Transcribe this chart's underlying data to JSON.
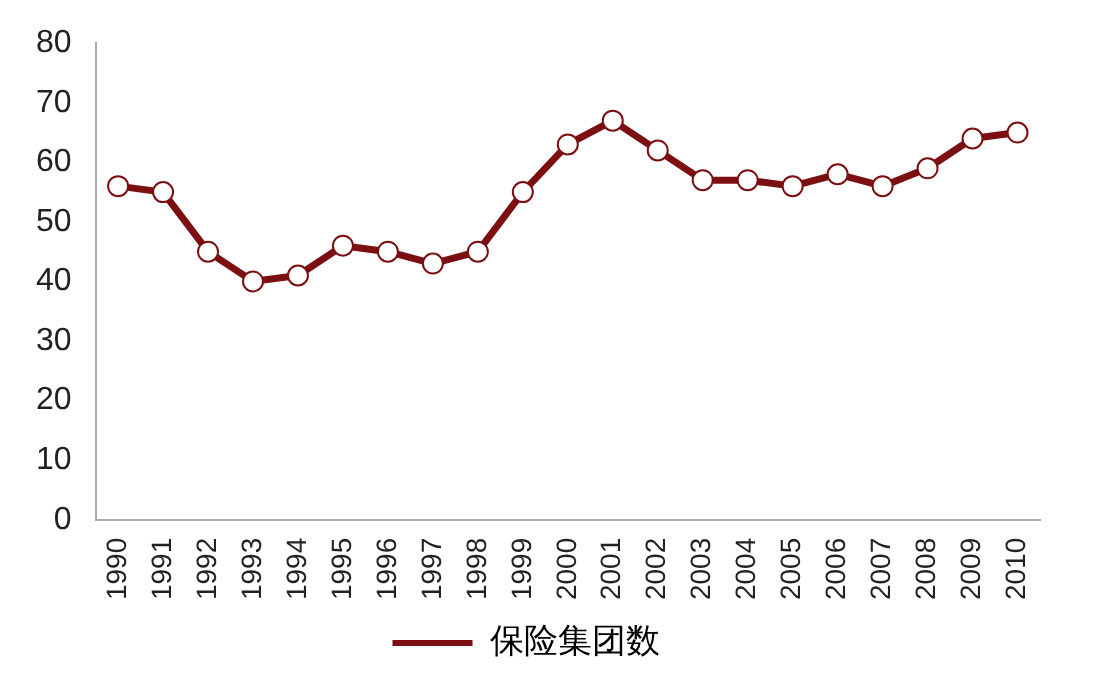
{
  "chart_data": {
    "type": "line",
    "categories": [
      "1990",
      "1991",
      "1992",
      "1993",
      "1994",
      "1995",
      "1996",
      "1997",
      "1998",
      "1999",
      "2000",
      "2001",
      "2002",
      "2003",
      "2004",
      "2005",
      "2006",
      "2007",
      "2008",
      "2009",
      "2010"
    ],
    "series": [
      {
        "name": "保险集团数",
        "color": "#7b0f12",
        "values": [
          56,
          55,
          45,
          40,
          41,
          46,
          45,
          43,
          45,
          55,
          63,
          67,
          62,
          57,
          57,
          56,
          58,
          56,
          59,
          64,
          65
        ]
      }
    ],
    "ylim": [
      0,
      80
    ],
    "yticks": [
      0,
      10,
      20,
      30,
      40,
      50,
      60,
      70,
      80
    ],
    "grid": false,
    "legend": "bottom",
    "marker": "circle",
    "line_style": "solid"
  }
}
